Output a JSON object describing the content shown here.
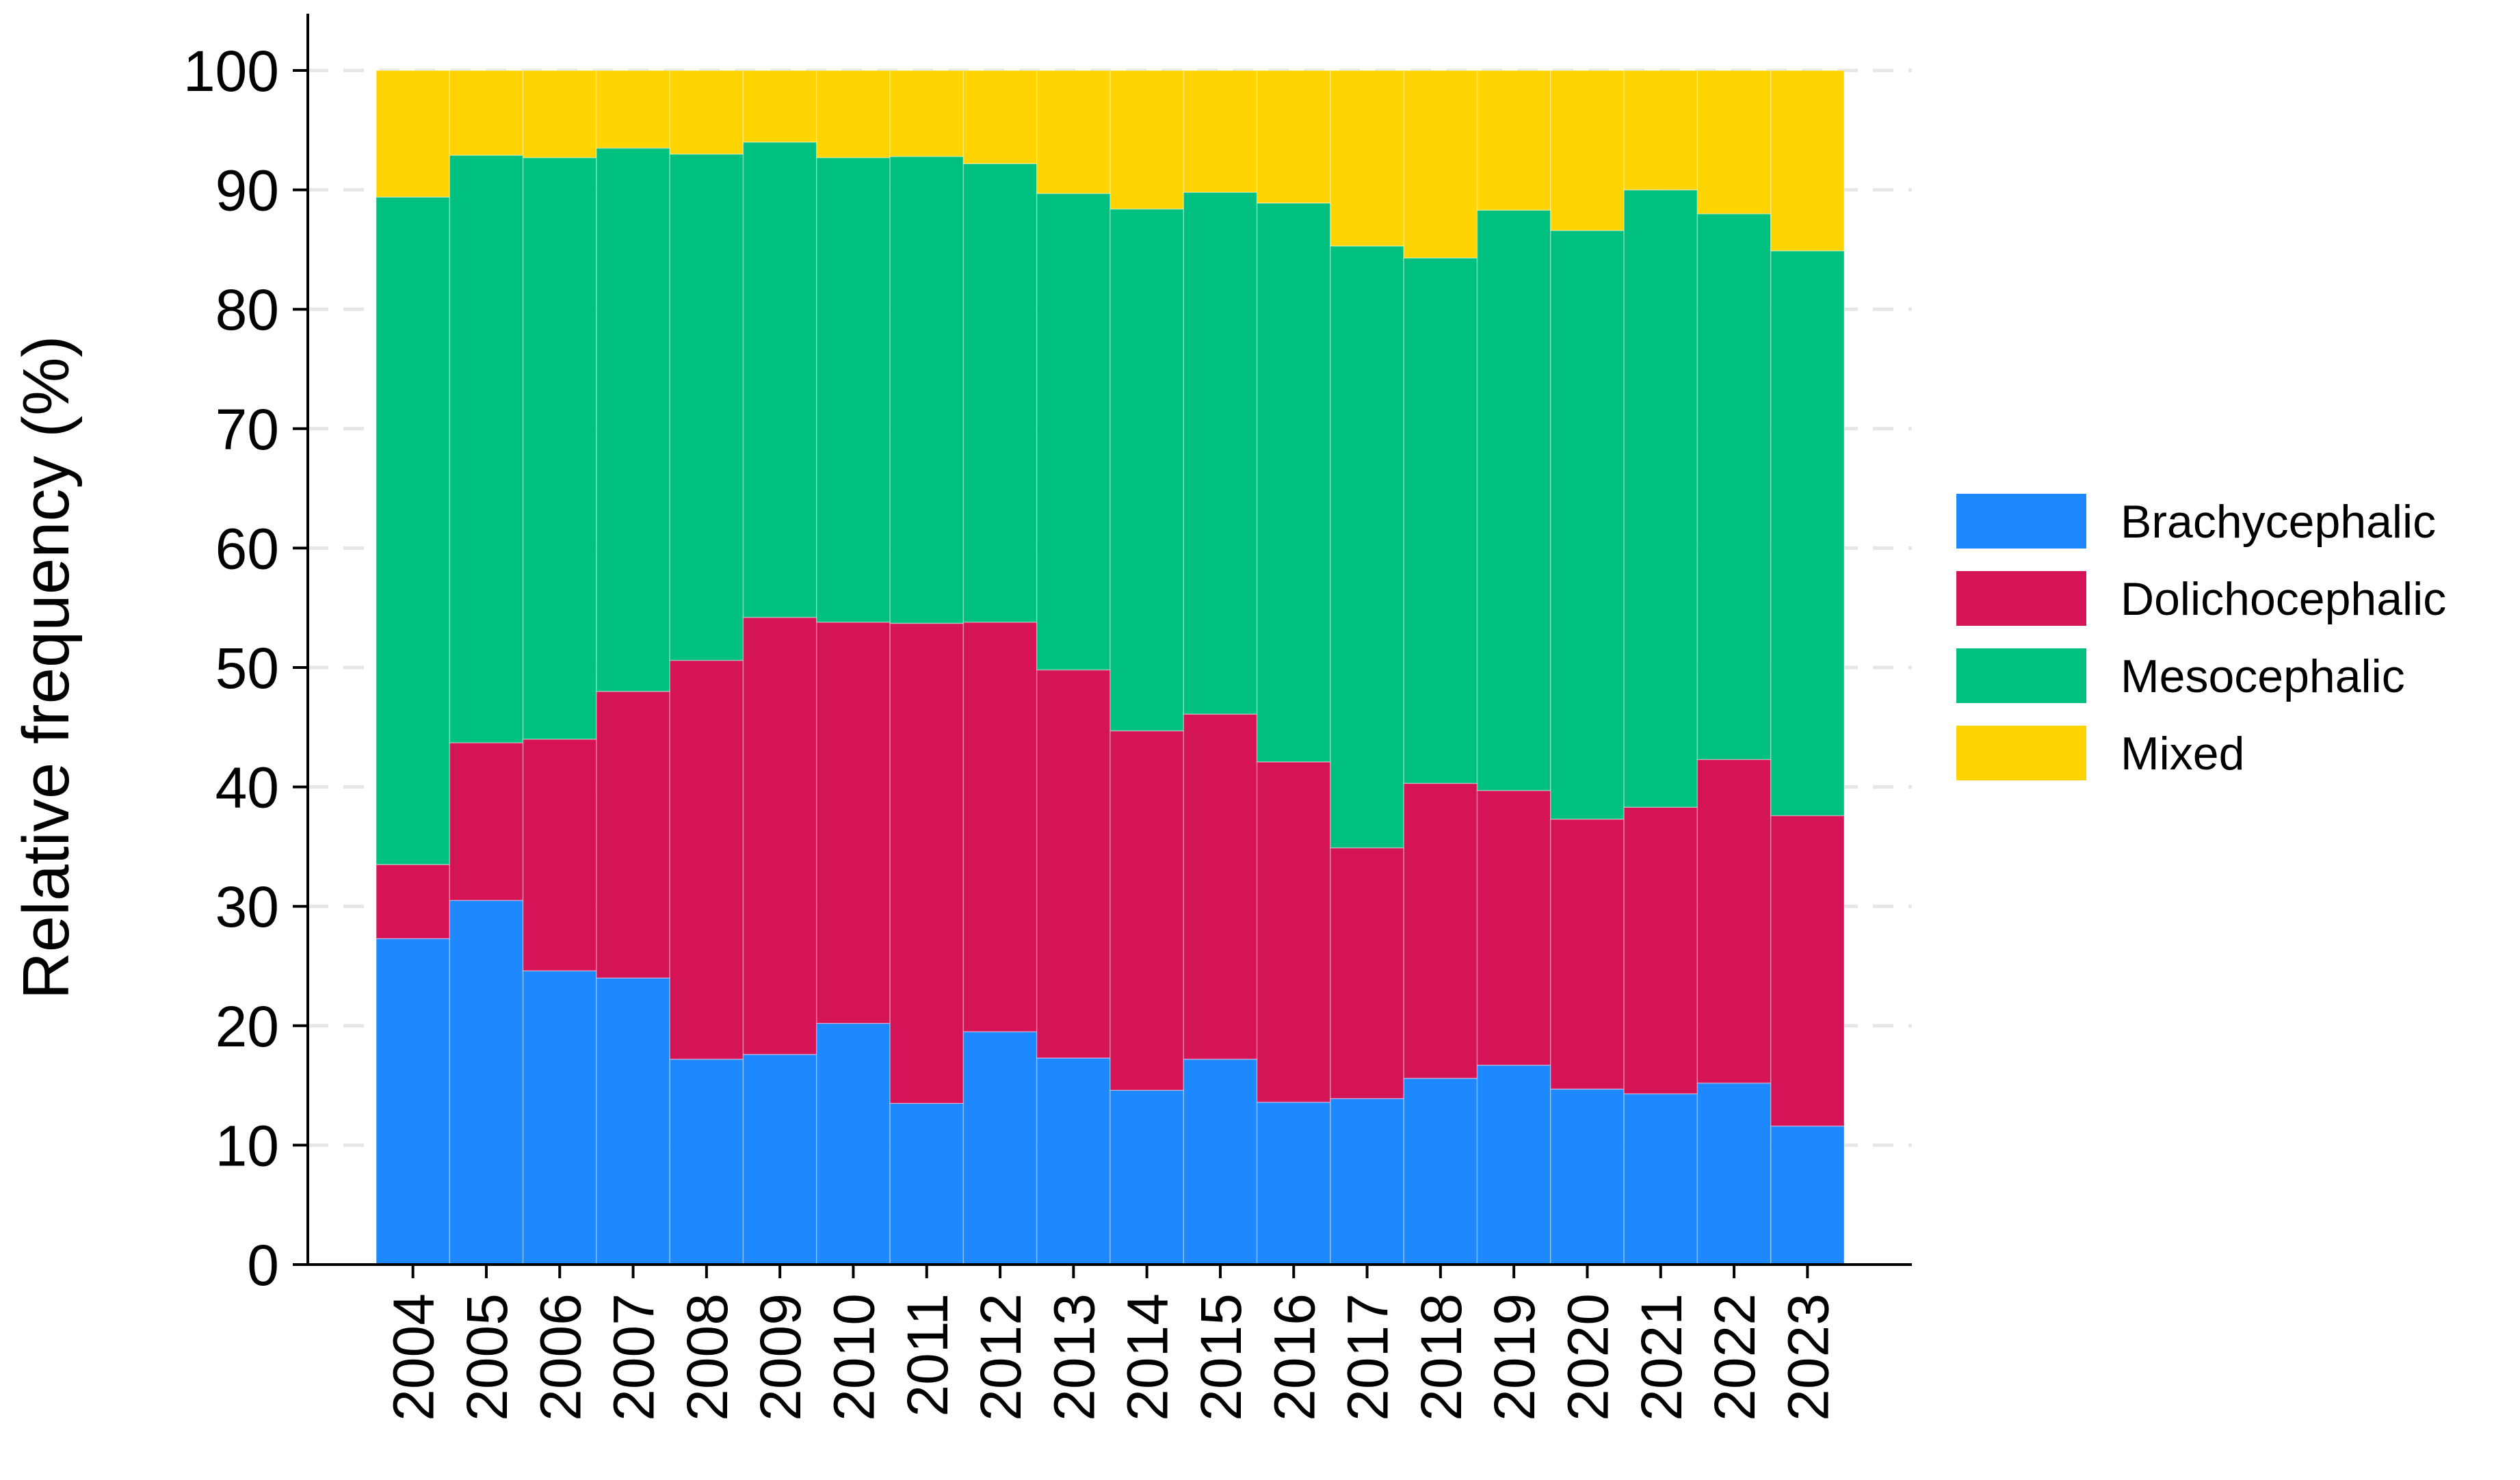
{
  "chart_data": {
    "type": "bar",
    "stacked": true,
    "title": "",
    "xlabel": "",
    "ylabel": "Relative frequency (%)",
    "ylim": [
      0,
      100
    ],
    "yticks": [
      0,
      10,
      20,
      30,
      40,
      50,
      60,
      70,
      80,
      90,
      100
    ],
    "grid": "horizontal dashed",
    "legend_position": "right",
    "categories": [
      "2004",
      "2005",
      "2006",
      "2007",
      "2008",
      "2009",
      "2010",
      "2011",
      "2012",
      "2013",
      "2014",
      "2015",
      "2016",
      "2017",
      "2018",
      "2019",
      "2020",
      "2021",
      "2022",
      "2023"
    ],
    "series": [
      {
        "name": "Brachycephalic",
        "color": "#1E88FF",
        "values": [
          27.3,
          30.5,
          24.6,
          24.0,
          17.2,
          17.6,
          20.2,
          13.5,
          19.5,
          17.3,
          14.6,
          17.2,
          13.6,
          13.9,
          15.6,
          16.7,
          14.7,
          14.3,
          15.2,
          11.6
        ]
      },
      {
        "name": "Dolichocephalic",
        "color": "#D51357",
        "values": [
          6.2,
          13.2,
          19.4,
          24.0,
          33.4,
          36.6,
          33.6,
          40.2,
          34.3,
          32.5,
          30.1,
          28.9,
          28.5,
          21.0,
          24.7,
          23.0,
          22.6,
          24.0,
          27.1,
          26.0
        ]
      },
      {
        "name": "Mesocephalic",
        "color": "#00C07F",
        "values": [
          55.9,
          49.2,
          48.7,
          45.5,
          42.4,
          39.8,
          38.9,
          39.1,
          38.4,
          39.9,
          43.7,
          43.7,
          46.8,
          50.4,
          44.0,
          48.6,
          49.3,
          51.7,
          45.7,
          47.3
        ]
      },
      {
        "name": "Mixed",
        "color": "#FFD400",
        "values": [
          10.6,
          7.1,
          7.3,
          6.5,
          7.0,
          6.0,
          7.3,
          7.2,
          7.8,
          10.3,
          11.6,
          10.2,
          11.1,
          14.7,
          15.7,
          11.7,
          13.4,
          10.0,
          12.0,
          15.1
        ]
      }
    ]
  }
}
